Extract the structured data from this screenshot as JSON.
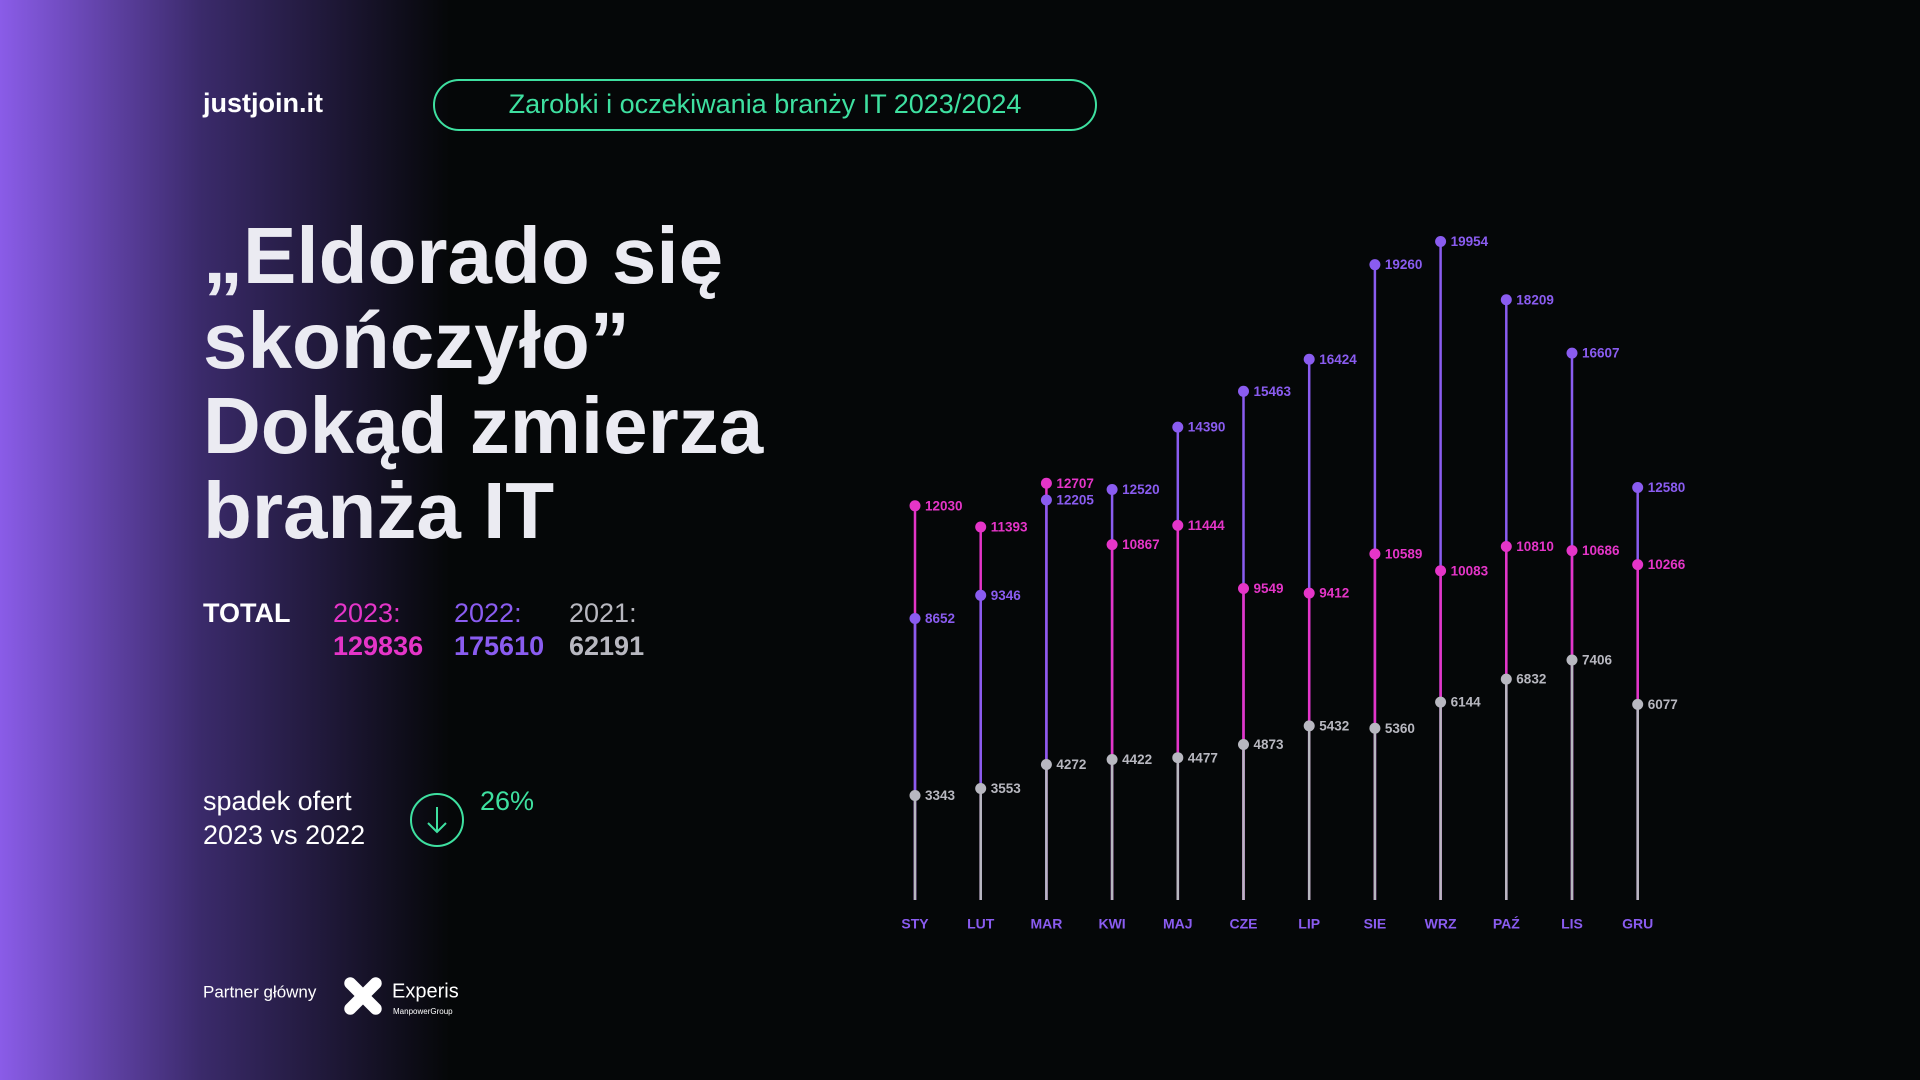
{
  "logo": "justjoin.it",
  "badge": "Zarobki i oczekiwania branży IT 2023/2024",
  "headline": [
    "„Eldorado się",
    "skończyło”",
    "Dokąd zmierza",
    "branża IT"
  ],
  "totals": {
    "label": "TOTAL",
    "items": [
      {
        "label": "2023:",
        "value": 129836
      },
      {
        "label": "2022:",
        "value": 175610
      },
      {
        "label": "2021:",
        "value": 62191
      }
    ]
  },
  "decline": {
    "lines": [
      "spadek ofert",
      "2023 vs 2022"
    ],
    "value": "26%"
  },
  "partner": {
    "label": "Partner główny",
    "name": "Experis",
    "group": "ManpowerGroup"
  },
  "chart_data": {
    "type": "lollipop",
    "categories": [
      "STY",
      "LUT",
      "MAR",
      "KWI",
      "MAJ",
      "CZE",
      "LIP",
      "SIE",
      "WRZ",
      "PAŹ",
      "LIS",
      "GRU"
    ],
    "ylim": [
      0,
      20000
    ],
    "series": [
      {
        "name": "2023",
        "color": "#e535c8",
        "values": [
          12030,
          11393,
          12707,
          10867,
          11444,
          9549,
          9412,
          10589,
          10083,
          10810,
          10686,
          10266
        ]
      },
      {
        "name": "2022",
        "color": "#8a5cf0",
        "values": [
          8652,
          9346,
          12205,
          12520,
          14390,
          15463,
          16424,
          19260,
          19954,
          18209,
          16607,
          12580
        ]
      },
      {
        "name": "2021",
        "color": "#b8b8c0",
        "values": [
          3343,
          3553,
          4272,
          4422,
          4477,
          4873,
          5432,
          5360,
          6144,
          6832,
          7406,
          6077
        ]
      }
    ]
  }
}
